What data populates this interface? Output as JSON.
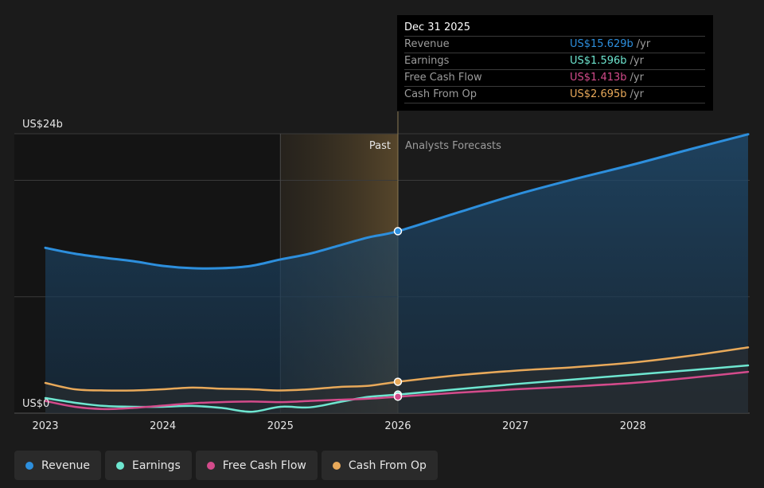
{
  "chart_data": {
    "type": "line",
    "y_axis": {
      "min": 0,
      "max": 24,
      "top_label": "US$24b",
      "bottom_label": "US$0"
    },
    "x_ticks": [
      "2023",
      "2024",
      "2025",
      "2026",
      "2027",
      "2028"
    ],
    "x_range": [
      2022.75,
      2028.98
    ],
    "divider": {
      "x": 2026.0,
      "past_label": "Past",
      "forecast_label": "Analysts Forecasts"
    },
    "series": [
      {
        "name": "Revenue",
        "color": "#2d8fdd",
        "points": [
          [
            2023.0,
            14.2
          ],
          [
            2023.25,
            13.7
          ],
          [
            2023.5,
            13.35
          ],
          [
            2023.75,
            13.05
          ],
          [
            2024.0,
            12.65
          ],
          [
            2024.25,
            12.45
          ],
          [
            2024.5,
            12.45
          ],
          [
            2024.75,
            12.65
          ],
          [
            2025.0,
            13.2
          ],
          [
            2025.25,
            13.7
          ],
          [
            2025.5,
            14.4
          ],
          [
            2025.75,
            15.1
          ],
          [
            2026.0,
            15.629
          ],
          [
            2026.5,
            17.2
          ],
          [
            2027.0,
            18.75
          ],
          [
            2027.5,
            20.1
          ],
          [
            2028.0,
            21.35
          ],
          [
            2028.5,
            22.7
          ],
          [
            2028.98,
            23.95
          ]
        ]
      },
      {
        "name": "Earnings",
        "color": "#6ee6d0",
        "points": [
          [
            2023.0,
            1.3
          ],
          [
            2023.25,
            0.9
          ],
          [
            2023.5,
            0.62
          ],
          [
            2023.75,
            0.55
          ],
          [
            2024.0,
            0.55
          ],
          [
            2024.25,
            0.62
          ],
          [
            2024.5,
            0.45
          ],
          [
            2024.75,
            0.12
          ],
          [
            2025.0,
            0.55
          ],
          [
            2025.25,
            0.5
          ],
          [
            2025.5,
            0.95
          ],
          [
            2025.75,
            1.4
          ],
          [
            2026.0,
            1.596
          ],
          [
            2026.5,
            2.05
          ],
          [
            2027.0,
            2.5
          ],
          [
            2027.5,
            2.9
          ],
          [
            2028.0,
            3.3
          ],
          [
            2028.5,
            3.7
          ],
          [
            2028.98,
            4.1
          ]
        ]
      },
      {
        "name": "Free Cash Flow",
        "color": "#d34b8b",
        "points": [
          [
            2023.0,
            1.05
          ],
          [
            2023.25,
            0.55
          ],
          [
            2023.5,
            0.35
          ],
          [
            2023.75,
            0.45
          ],
          [
            2024.0,
            0.65
          ],
          [
            2024.25,
            0.85
          ],
          [
            2024.5,
            0.95
          ],
          [
            2024.75,
            1.0
          ],
          [
            2025.0,
            0.95
          ],
          [
            2025.25,
            1.05
          ],
          [
            2025.5,
            1.15
          ],
          [
            2025.75,
            1.25
          ],
          [
            2026.0,
            1.413
          ],
          [
            2026.5,
            1.75
          ],
          [
            2027.0,
            2.05
          ],
          [
            2027.5,
            2.3
          ],
          [
            2028.0,
            2.6
          ],
          [
            2028.5,
            3.05
          ],
          [
            2028.98,
            3.55
          ]
        ]
      },
      {
        "name": "Cash From Op",
        "color": "#e8a95a",
        "points": [
          [
            2023.0,
            2.6
          ],
          [
            2023.25,
            2.05
          ],
          [
            2023.5,
            1.95
          ],
          [
            2023.75,
            1.95
          ],
          [
            2024.0,
            2.05
          ],
          [
            2024.25,
            2.2
          ],
          [
            2024.5,
            2.1
          ],
          [
            2024.75,
            2.05
          ],
          [
            2025.0,
            1.95
          ],
          [
            2025.25,
            2.05
          ],
          [
            2025.5,
            2.25
          ],
          [
            2025.75,
            2.35
          ],
          [
            2026.0,
            2.695
          ],
          [
            2026.5,
            3.25
          ],
          [
            2027.0,
            3.65
          ],
          [
            2027.5,
            3.95
          ],
          [
            2028.0,
            4.35
          ],
          [
            2028.5,
            4.95
          ],
          [
            2028.98,
            5.65
          ]
        ]
      }
    ]
  },
  "tooltip": {
    "date": "Dec 31 2025",
    "rows": [
      {
        "label": "Revenue",
        "value": "US$15.629b",
        "unit": "/yr",
        "color": "#2d8fdd"
      },
      {
        "label": "Earnings",
        "value": "US$1.596b",
        "unit": "/yr",
        "color": "#6ee6d0"
      },
      {
        "label": "Free Cash Flow",
        "value": "US$1.413b",
        "unit": "/yr",
        "color": "#d34b8b"
      },
      {
        "label": "Cash From Op",
        "value": "US$2.695b",
        "unit": "/yr",
        "color": "#e8a95a"
      }
    ]
  },
  "legend": [
    {
      "label": "Revenue",
      "color": "#2d8fdd"
    },
    {
      "label": "Earnings",
      "color": "#6ee6d0"
    },
    {
      "label": "Free Cash Flow",
      "color": "#d34b8b"
    },
    {
      "label": "Cash From Op",
      "color": "#e8a95a"
    }
  ]
}
